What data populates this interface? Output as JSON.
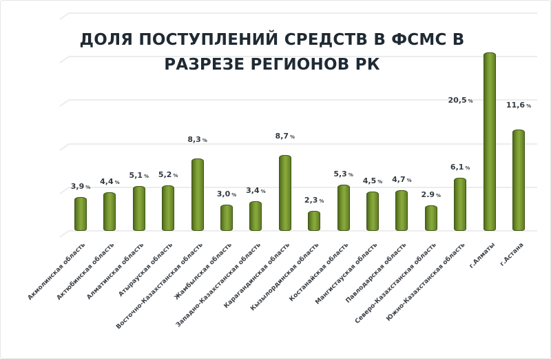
{
  "chart_data": {
    "type": "bar",
    "title": "ДОЛЯ ПОСТУПЛЕНИЙ СРЕДСТВ В ФСМС В РАЗРЕЗЕ РЕГИОНОВ РК",
    "title_lines": [
      "ДОЛЯ ПОСТУПЛЕНИЙ СРЕДСТВ В ФСМС В",
      "РАЗРЕЗЕ РЕГИОНОВ РК"
    ],
    "xlabel": "",
    "ylabel": "",
    "ylim": [
      0,
      25
    ],
    "grid": true,
    "gridlines": [
      0,
      5,
      10,
      15,
      20,
      25
    ],
    "legend": null,
    "bar_color": "#6b8a2a",
    "unit": "%",
    "categories": [
      "Акмолинская область",
      "Актюбинская область",
      "Алматинская область",
      "Атырауская область",
      "Восточно-Казахстанская область",
      "Жамбылская область",
      "Западно-Казахстанская область",
      "Карагандинская область",
      "Кызылординская область",
      "Костанайская область",
      "Мангистауская область",
      "Павлодарская область",
      "Северо-Казахстанская область",
      "Южно-Казахстанская область",
      "г.Алматы",
      "г.Астана"
    ],
    "values": [
      3.9,
      4.4,
      5.1,
      5.2,
      8.3,
      3.0,
      3.4,
      8.7,
      2.3,
      5.3,
      4.5,
      4.7,
      2.9,
      6.1,
      20.5,
      11.6
    ],
    "value_labels": [
      "3,9",
      "4,4",
      "5,1",
      "5,2",
      "8,3",
      "3,0",
      "3,4",
      "8,7",
      "2,3",
      "5,3",
      "4,5",
      "4,7",
      "2.9",
      "6,1",
      "20,5",
      "11,6"
    ]
  }
}
